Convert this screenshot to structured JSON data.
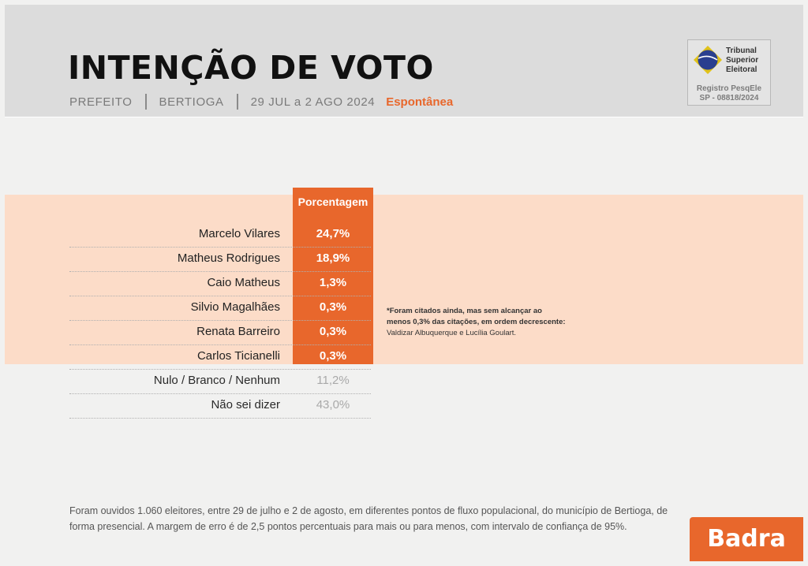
{
  "header": {
    "title": "INTENÇÃO DE VOTO",
    "subtitle": {
      "office": "PREFEITO",
      "city": "BERTIOGA",
      "period": "29 JUL a 2 AGO 2024",
      "type": "Espontânea"
    },
    "tse": {
      "name": "Tribunal\nSuperior\nEleitoral",
      "registration": "Registro PesqEle\nSP -  08818/2024"
    }
  },
  "colors": {
    "accent": "#e8672c",
    "band": "#fcdcc8",
    "header_bg": "#dcdcdc"
  },
  "chart_data": {
    "type": "table",
    "column_header": "Porcentagem",
    "candidates": [
      {
        "name": "Marcelo Vilares",
        "value": "24,7%"
      },
      {
        "name": "Matheus Rodrigues",
        "value": "18,9%"
      },
      {
        "name": "Caio Matheus",
        "value": "1,3%"
      },
      {
        "name": "Silvio Magalhães",
        "value": "0,3%"
      },
      {
        "name": "Renata Barreiro",
        "value": "0,3%"
      },
      {
        "name": "Carlos Ticianelli",
        "value": "0,3%"
      }
    ],
    "others": [
      {
        "name": "Nulo / Branco / Nenhum",
        "value": "11,2%"
      },
      {
        "name": "Não sei dizer",
        "value": "43,0%"
      }
    ],
    "footnote": {
      "text": "*Foram citados ainda, mas sem alcançar ao menos 0,3% das citações, em ordem decrescente: ",
      "names": "Valdizar Albuquerque e Lucília Goulart."
    }
  },
  "methodology": "Foram ouvidos 1.060 eleitores, entre 29 de julho e 2 de agosto, em diferentes pontos de fluxo populacional, do município de Bertioga, de forma presencial. A margem de erro é de 2,5 pontos percentuais para mais ou para menos, com intervalo de confiança de 95%.",
  "brand": {
    "logo_text": "Badra"
  }
}
